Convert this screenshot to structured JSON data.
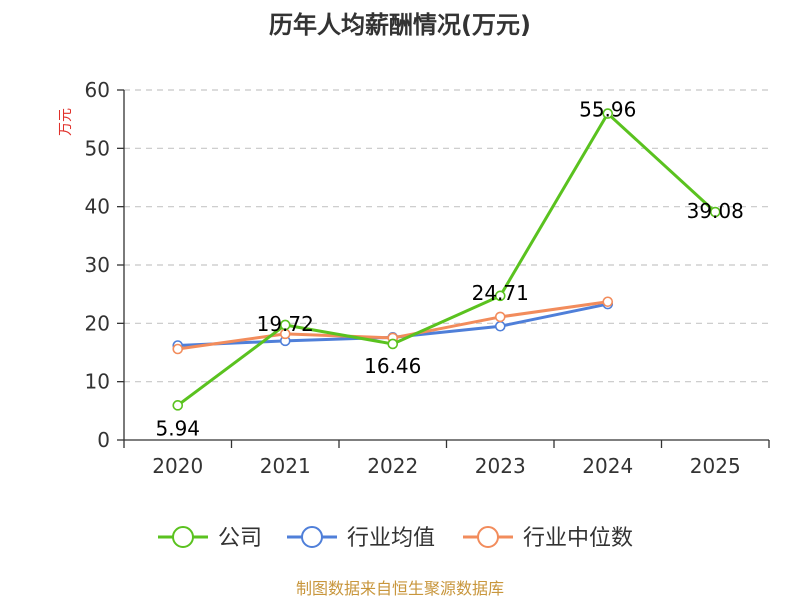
{
  "chart_data": {
    "type": "line",
    "title": "历年人均薪酬情况(万元)",
    "ylabel": "万元",
    "xlabel": "",
    "categories": [
      "2020",
      "2021",
      "2022",
      "2023",
      "2024",
      "2025"
    ],
    "ylim": [
      0,
      60
    ],
    "yticks": [
      0,
      10,
      20,
      30,
      40,
      50,
      60
    ],
    "grid": true,
    "legend": "bottom",
    "series": [
      {
        "name": "公司",
        "color": "#5ac21f",
        "values": [
          5.94,
          19.72,
          16.46,
          24.71,
          55.96,
          39.08
        ],
        "labels": [
          "5.94",
          "19.72",
          "16.46",
          "24.71",
          "55.96",
          "39.08"
        ]
      },
      {
        "name": "行业均值",
        "color": "#4f7fd9",
        "values": [
          16.2,
          17.0,
          17.6,
          19.5,
          23.3,
          null
        ]
      },
      {
        "name": "行业中位数",
        "color": "#f28c5c",
        "values": [
          15.6,
          18.2,
          17.5,
          21.1,
          23.7,
          null
        ]
      }
    ]
  },
  "source": "制图数据来自恒生聚源数据库"
}
